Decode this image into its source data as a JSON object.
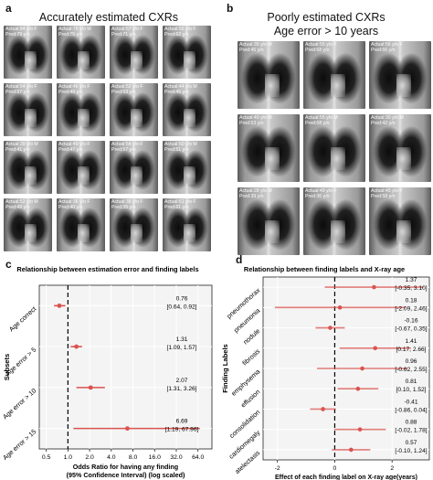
{
  "panel_a": {
    "label": "a",
    "title": "Accurately estimated CXRs",
    "images": [
      {
        "actual": "Actual:84 y/o F",
        "pred": "Pred:79 y/o"
      },
      {
        "actual": "Actual:76 y/o M",
        "pred": "Pred:75 y/o"
      },
      {
        "actual": "Actual:67 y/o F",
        "pred": "Pred:71 y/o"
      },
      {
        "actual": "Actual:56 y/o F",
        "pred": "Pred:62 y/o"
      },
      {
        "actual": "Actual:54 y/o F",
        "pred": "Pred:57 y/o"
      },
      {
        "actual": "Actual:46 y/o F",
        "pred": "Pred:49 y/o"
      },
      {
        "actual": "Actual:52 y/o F",
        "pred": "Pred:53 y/o"
      },
      {
        "actual": "Actual:44 y/o M",
        "pred": "Pred:45 y/o"
      },
      {
        "actual": "Actual:39 y/o M",
        "pred": "Pred:41 y/o"
      },
      {
        "actual": "Actual:49 y/o F",
        "pred": "Pred:47 y/o"
      },
      {
        "actual": "Actual:54 y/o F",
        "pred": "Pred:57 y/o"
      },
      {
        "actual": "Actual:50 y/o M",
        "pred": "Pred:51 y/o"
      },
      {
        "actual": "Actual:52 y/o M",
        "pred": "Pred:49 y/o"
      },
      {
        "actual": "Actual:36 y/o F",
        "pred": "Pred:40 y/o"
      },
      {
        "actual": "Actual:38 y/o F",
        "pred": "Pred:35 y/o"
      },
      {
        "actual": "Actual:61 y/o F",
        "pred": "Pred:61 y/o"
      }
    ]
  },
  "panel_b": {
    "label": "b",
    "title_line1": "Poorly estimated CXRs",
    "title_line2": "Age error > 10 years",
    "images": [
      {
        "actual": "Actual:35 y/o M",
        "pred": "Pred:45 y/o"
      },
      {
        "actual": "Actual:55 y/o F",
        "pred": "Pred:68 y/o"
      },
      {
        "actual": "Actual:56 y/o F",
        "pred": "Pred:66 y/o"
      },
      {
        "actual": "Actual:40 y/o M",
        "pred": "Pred:53 y/o"
      },
      {
        "actual": "Actual:55 y/o M",
        "pred": "Pred:68 y/o"
      },
      {
        "actual": "Actual:30 y/o M",
        "pred": "Pred:42 y/o"
      },
      {
        "actual": "Actual:28 y/o M",
        "pred": "Pred:39 y/o"
      },
      {
        "actual": "Actual:49 y/o F",
        "pred": "Pred:36 y/o"
      },
      {
        "actual": "Actual:45 y/o F",
        "pred": "Pred:58 y/o"
      }
    ]
  },
  "chart_data": [
    {
      "panel": "c",
      "type": "scatter",
      "title": "Relationship between estimation error and finding labels",
      "xlabel_line1": "Odds Ratio for having any finding",
      "xlabel_line2": "(95% Confidence Interval) (log scaled)",
      "ylabel": "Subsets",
      "x_scale": "log",
      "xlim": [
        0.4,
        100
      ],
      "x_ticks": [
        0.5,
        1.0,
        2.0,
        4.0,
        8.0,
        16.0,
        32.0,
        64.0
      ],
      "x_tick_labels": [
        "0.5",
        "1.0",
        "2.0",
        "4.0",
        "8.0",
        "16.0",
        "32.0",
        "64.0"
      ],
      "reference_line": 1.0,
      "grid": true,
      "points": [
        {
          "category": "Age correct",
          "value": 0.76,
          "lower": 0.64,
          "upper": 0.92,
          "value_label": "0.76",
          "ci_label": "[0.64, 0.92]"
        },
        {
          "category": "Age error > 5",
          "value": 1.31,
          "lower": 1.09,
          "upper": 1.57,
          "value_label": "1.31",
          "ci_label": "[1.09, 1.57]"
        },
        {
          "category": "Age error > 10",
          "value": 2.07,
          "lower": 1.31,
          "upper": 3.26,
          "value_label": "2.07",
          "ci_label": "[1.31, 3.26]"
        },
        {
          "category": "Age error > 15",
          "value": 6.69,
          "lower": 1.19,
          "upper": 67.96,
          "value_label": "6.69",
          "ci_label": "[1.19, 67.96]"
        }
      ],
      "color": "#d9534f"
    },
    {
      "panel": "d",
      "type": "scatter",
      "title": "Relationship between finding labels and X-ray age",
      "xlabel": "Effect of each finding label on X-ray age(years)",
      "ylabel": "Finding Labels",
      "xlim": [
        -2.5,
        3.3
      ],
      "x_ticks": [
        -2,
        0,
        2
      ],
      "x_tick_labels": [
        "-2",
        "0",
        "2"
      ],
      "reference_line": 0,
      "grid": true,
      "points": [
        {
          "category": "pneumothorax",
          "value": 1.37,
          "lower": -0.35,
          "upper": 3.1,
          "value_label": "1.37",
          "ci_label": "[-0.35, 3.10]"
        },
        {
          "category": "pneumonia",
          "value": 0.18,
          "lower": -2.09,
          "upper": 2.46,
          "value_label": "0.18",
          "ci_label": "[-2.09, 2.46]"
        },
        {
          "category": "nodule",
          "value": -0.16,
          "lower": -0.67,
          "upper": 0.35,
          "value_label": "-0.16",
          "ci_label": "[-0.67, 0.35]"
        },
        {
          "category": "fibrosis",
          "value": 1.41,
          "lower": 0.17,
          "upper": 2.66,
          "value_label": "1.41",
          "ci_label": "[0.17, 2.66]"
        },
        {
          "category": "emphysema",
          "value": 0.96,
          "lower": -0.62,
          "upper": 2.55,
          "value_label": "0.96",
          "ci_label": "[-0.62, 2.55]"
        },
        {
          "category": "effusion",
          "value": 0.81,
          "lower": 0.1,
          "upper": 1.52,
          "value_label": "0.81",
          "ci_label": "[0.10, 1.52]"
        },
        {
          "category": "consolidation",
          "value": -0.41,
          "lower": -0.86,
          "upper": 0.04,
          "value_label": "-0.41",
          "ci_label": "[-0.86, 0.04]"
        },
        {
          "category": "cardiomegaly",
          "value": 0.88,
          "lower": -0.02,
          "upper": 1.78,
          "value_label": "0.88",
          "ci_label": "[-0.02, 1.78]"
        },
        {
          "category": "atelectasis",
          "value": 0.57,
          "lower": -0.1,
          "upper": 1.24,
          "value_label": "0.57",
          "ci_label": "[-0.10, 1.24]"
        }
      ],
      "color": "#d9534f"
    }
  ]
}
